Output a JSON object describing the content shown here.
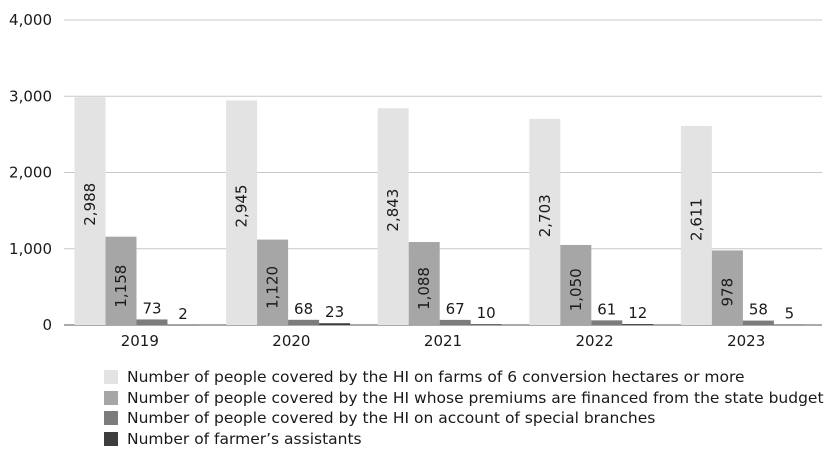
{
  "chart_data": {
    "type": "bar",
    "categories": [
      "2019",
      "2020",
      "2021",
      "2022",
      "2023"
    ],
    "series": [
      {
        "name": "Number of people covered by the HI on farms of 6 conversion hectares or more",
        "values": [
          2988,
          2945,
          2843,
          2703,
          2611
        ],
        "labels": [
          "2,988",
          "2,945",
          "2,843",
          "2,703",
          "2,611"
        ],
        "color": "#e3e3e3"
      },
      {
        "name": "Number of people covered by the HI whose premiums are financed from the state budget",
        "values": [
          1158,
          1120,
          1088,
          1050,
          978
        ],
        "labels": [
          "1,158",
          "1,120",
          "1,088",
          "1,050",
          "978"
        ],
        "color": "#a6a6a6"
      },
      {
        "name": "Number of people covered by the HI on account of special branches",
        "values": [
          73,
          68,
          67,
          61,
          58
        ],
        "labels": [
          "73",
          "68",
          "67",
          "61",
          "58"
        ],
        "color": "#7c7c7c"
      },
      {
        "name": "Number of farmer’s assistants",
        "values": [
          2,
          23,
          10,
          12,
          5
        ],
        "labels": [
          "2",
          "23",
          "10",
          "12",
          "5"
        ],
        "color": "#3d3d3d"
      }
    ],
    "y_ticks": [
      "0",
      "1,000",
      "2,000",
      "3,000",
      "4,000"
    ],
    "ylim": [
      0,
      4000
    ],
    "grid": true,
    "legend_position": "bottom",
    "title": "",
    "xlabel": "",
    "ylabel": ""
  }
}
